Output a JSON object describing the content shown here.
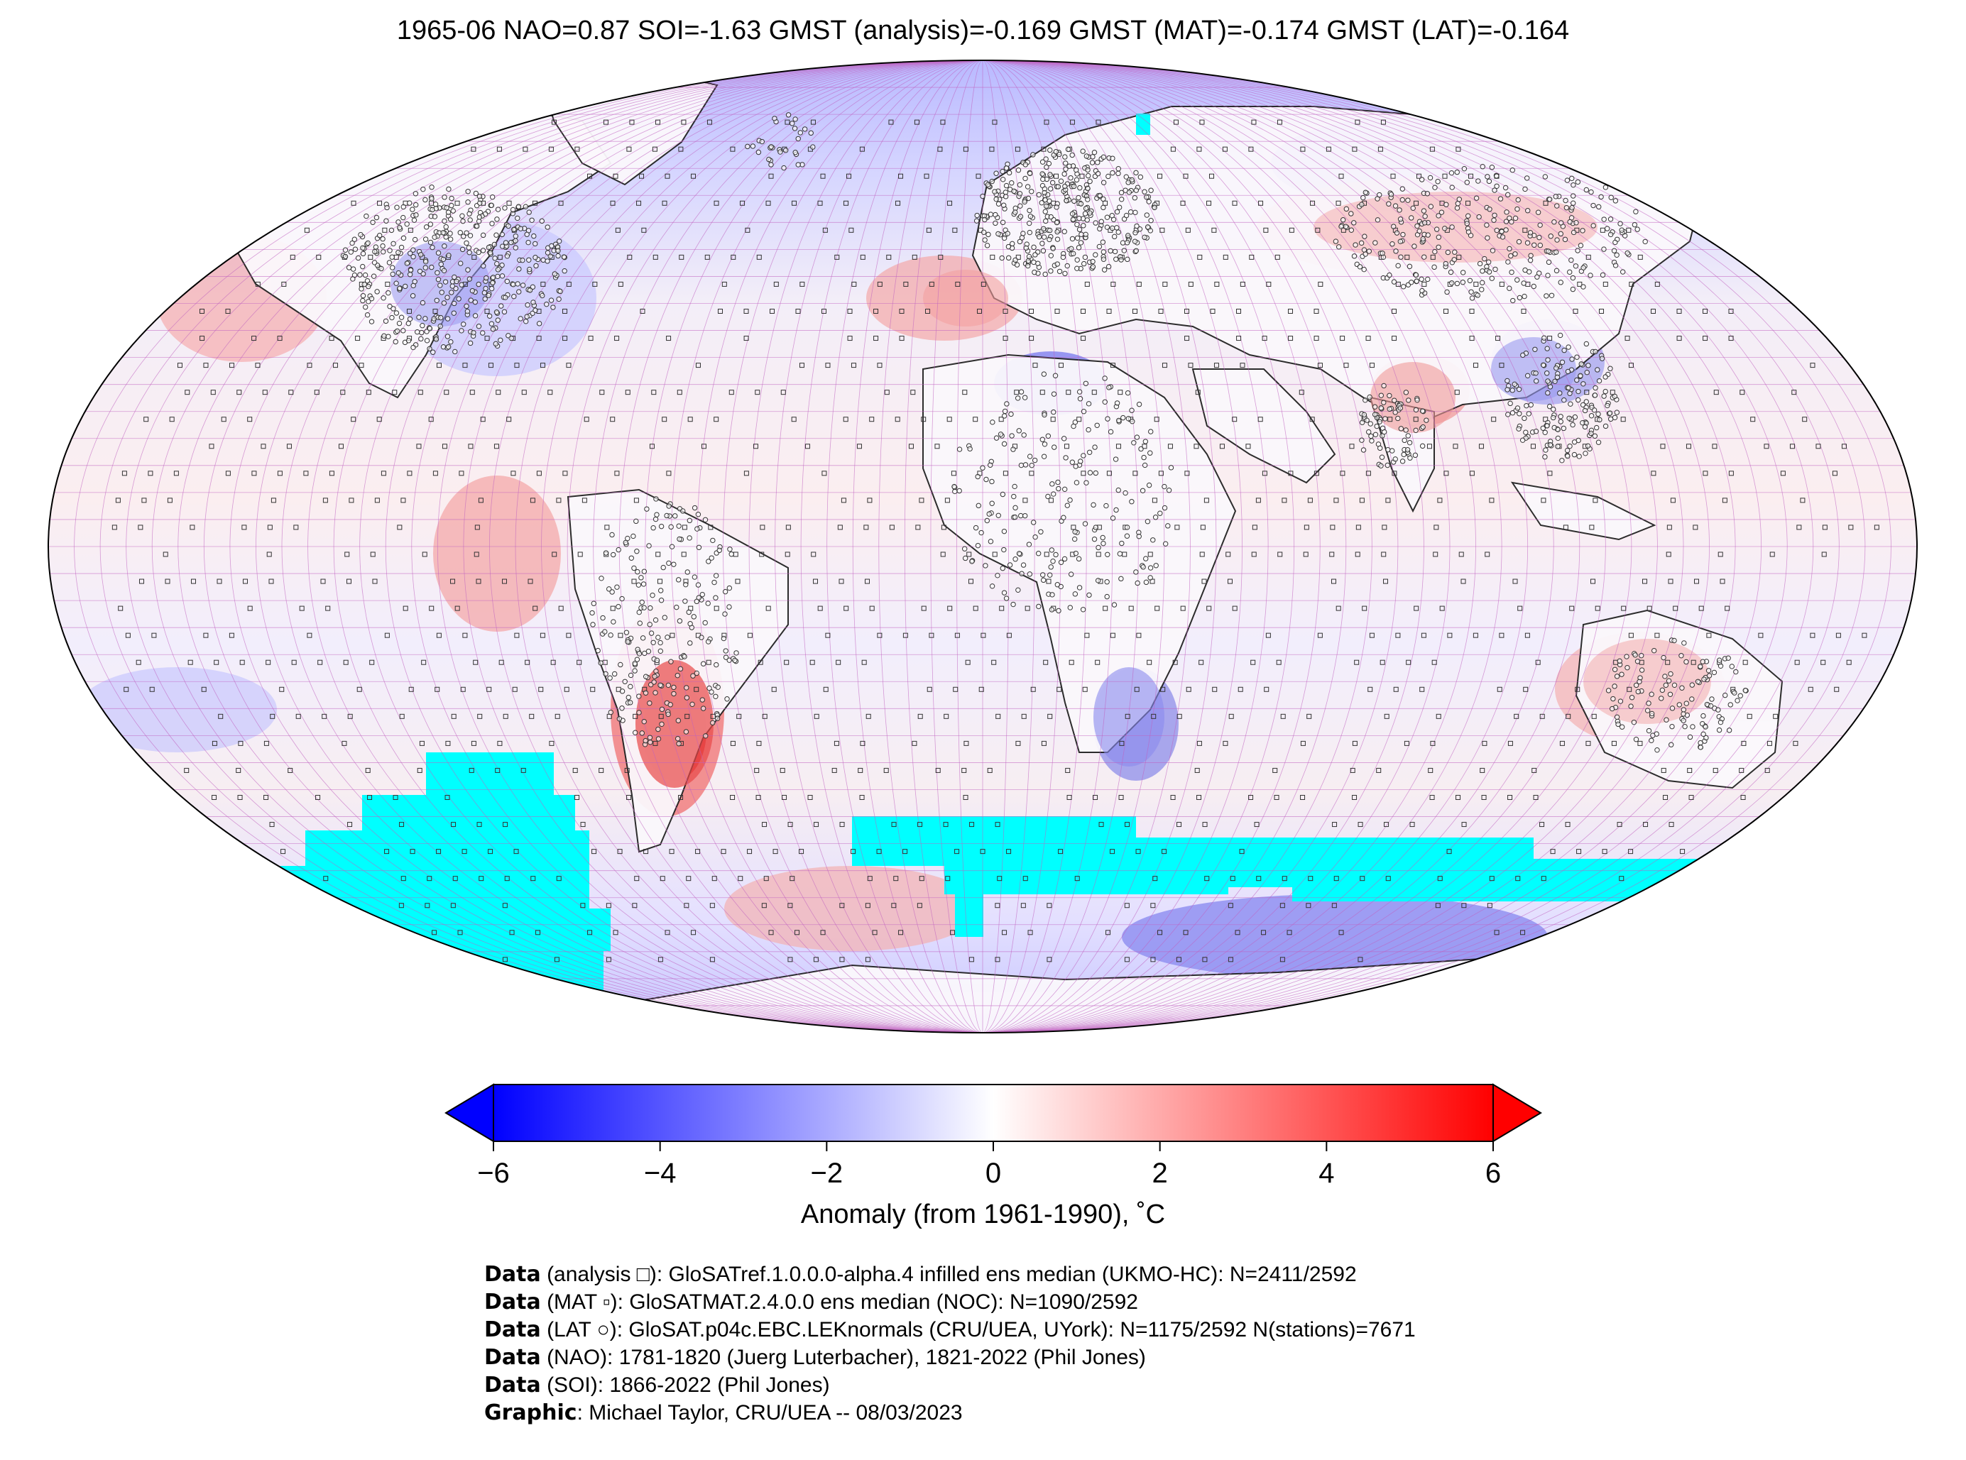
{
  "title": "1965-06 NAO=0.87 SOI=-1.63 GMST (analysis)=-0.169 GMST (MAT)=-0.174 GMST (LAT)=-0.164",
  "colorbar": {
    "ticks": [
      "−6",
      "−4",
      "−2",
      "0",
      "2",
      "4",
      "6"
    ],
    "tick_values": [
      -6,
      -4,
      -2,
      0,
      2,
      4,
      6
    ],
    "range": [
      -6,
      6
    ],
    "label": "Anomaly (from 1961-1990), ˚C",
    "colors": {
      "min": "#0000ff",
      "mid": "#ffffff",
      "max": "#ff0000"
    }
  },
  "map": {
    "projection": "robinson",
    "ocean_missing_color": "#00ffff",
    "land_color": "#ffffff",
    "grid_color": "#c060c0",
    "legend_markers": [
      "square",
      "small-square",
      "circle"
    ]
  },
  "credits": [
    {
      "bold": "Data",
      "text": " (analysis □): GloSATref.1.0.0.0-alpha.4 infilled ens median (UKMO-HC): N=2411/2592"
    },
    {
      "bold": "Data",
      "text": " (MAT ▫): GloSATMAT.2.4.0.0 ens median (NOC): N=1090/2592"
    },
    {
      "bold": "Data",
      "text": " (LAT ○): GloSAT.p04c.EBC.LEKnormals (CRU/UEA, UYork): N=1175/2592 N(stations)=7671"
    },
    {
      "bold": "Data",
      "text": " (NAO): 1781-1820 (Juerg Luterbacher), 1821-2022 (Phil Jones)"
    },
    {
      "bold": "Data",
      "text": " (SOI): 1866-2022 (Phil Jones)"
    },
    {
      "bold": "Graphic",
      "text": ": Michael Taylor, CRU/UEA -- 08/03/2023"
    }
  ]
}
